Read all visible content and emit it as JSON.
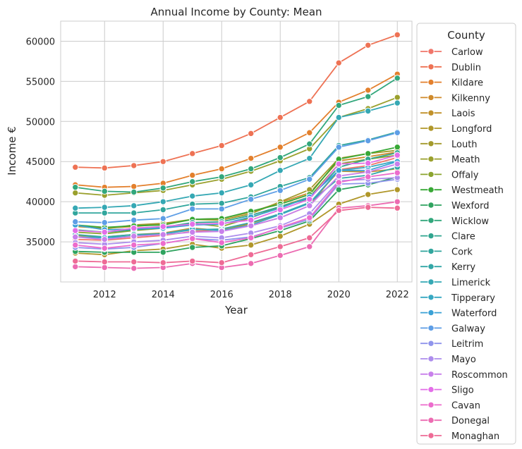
{
  "chart_data": {
    "type": "line",
    "title": "Annual Income by County: Mean",
    "xlabel": "Year",
    "ylabel": "Income €",
    "legend_title": "County",
    "legend_position": "outside-right",
    "grid": true,
    "xlim": [
      2010.5,
      2022.5
    ],
    "ylim": [
      30000,
      62500
    ],
    "x_ticks": [
      2012,
      2014,
      2016,
      2018,
      2020,
      2022
    ],
    "y_ticks": [
      35000,
      40000,
      45000,
      50000,
      55000,
      60000
    ],
    "x": [
      2011,
      2012,
      2013,
      2014,
      2015,
      2016,
      2017,
      2018,
      2019,
      2020,
      2021,
      2022
    ],
    "series": [
      {
        "name": "Carlow",
        "color": "#f0766a",
        "values": [
          35300,
          35200,
          35500,
          35800,
          36300,
          36500,
          37000,
          38000,
          39500,
          44000,
          44500,
          45500
        ]
      },
      {
        "name": "Dublin",
        "color": "#ee7254",
        "values": [
          44300,
          44200,
          44500,
          45000,
          46000,
          47000,
          48500,
          50500,
          52500,
          57300,
          59500,
          60800
        ]
      },
      {
        "name": "Kildare",
        "color": "#e3802d",
        "values": [
          42100,
          41800,
          41900,
          42300,
          43300,
          44100,
          45400,
          46800,
          48600,
          52400,
          53900,
          55900
        ]
      },
      {
        "name": "Kilkenny",
        "color": "#cf8a2b",
        "values": [
          36900,
          36700,
          36900,
          37200,
          37800,
          37900,
          38700,
          39900,
          41100,
          45100,
          45600,
          46200
        ]
      },
      {
        "name": "Laois",
        "color": "#c1912a",
        "values": [
          35800,
          35600,
          35900,
          36100,
          36700,
          36400,
          37300,
          38500,
          39800,
          43800,
          43700,
          44100
        ]
      },
      {
        "name": "Longford",
        "color": "#b0972a",
        "values": [
          33600,
          33400,
          33900,
          34100,
          34700,
          34200,
          34600,
          35700,
          37200,
          39700,
          40900,
          41500
        ]
      },
      {
        "name": "Louth",
        "color": "#a39a2b",
        "values": [
          37000,
          36600,
          37100,
          37300,
          37800,
          37700,
          38500,
          40000,
          41500,
          45400,
          46000,
          46400
        ]
      },
      {
        "name": "Meath",
        "color": "#9aa02d",
        "values": [
          41100,
          40800,
          41100,
          41400,
          42100,
          42800,
          43800,
          45100,
          46600,
          50500,
          51600,
          53000
        ]
      },
      {
        "name": "Offaly",
        "color": "#8ba42f",
        "values": [
          36200,
          36000,
          36400,
          36700,
          37300,
          36900,
          38000,
          39400,
          40600,
          44700,
          45300,
          45800
        ]
      },
      {
        "name": "Westmeath",
        "color": "#38a836",
        "values": [
          37100,
          36800,
          37000,
          37100,
          37800,
          37900,
          38800,
          39700,
          40900,
          45300,
          46000,
          46800
        ]
      },
      {
        "name": "Wexford",
        "color": "#2fa35f",
        "values": [
          33800,
          33700,
          33700,
          33700,
          34300,
          34500,
          35400,
          36400,
          37600,
          41500,
          42100,
          43100
        ]
      },
      {
        "name": "Wicklow",
        "color": "#32a77c",
        "values": [
          41800,
          41300,
          41200,
          41700,
          42500,
          43100,
          44100,
          45500,
          47200,
          52000,
          53100,
          55400
        ]
      },
      {
        "name": "Clare",
        "color": "#30a58f",
        "values": [
          36500,
          36200,
          36500,
          36800,
          37400,
          37500,
          38300,
          39400,
          40400,
          44300,
          45300,
          46100
        ]
      },
      {
        "name": "Cork",
        "color": "#31a69d",
        "values": [
          38600,
          38600,
          38600,
          39000,
          39700,
          39800,
          40600,
          41900,
          43000,
          47000,
          47700,
          48700
        ]
      },
      {
        "name": "Kerry",
        "color": "#33a7a7",
        "values": [
          35900,
          35600,
          35900,
          36000,
          36500,
          36600,
          37400,
          38500,
          39900,
          42900,
          43300,
          44300
        ]
      },
      {
        "name": "Limerick",
        "color": "#35a8b4",
        "values": [
          39200,
          39300,
          39500,
          40000,
          40700,
          41100,
          42100,
          43900,
          45400,
          50500,
          51300,
          52300
        ]
      },
      {
        "name": "Tipperary",
        "color": "#37a8c2",
        "values": [
          35600,
          35500,
          35700,
          36000,
          36600,
          36400,
          37100,
          38400,
          39800,
          43900,
          44300,
          45100
        ]
      },
      {
        "name": "Waterford",
        "color": "#3aa1d6",
        "values": [
          37100,
          36500,
          36600,
          36700,
          37100,
          37200,
          38100,
          39200,
          40600,
          43900,
          43900,
          45000
        ]
      },
      {
        "name": "Galway",
        "color": "#5e9ee6",
        "values": [
          37500,
          37400,
          37700,
          37900,
          39100,
          39100,
          40300,
          41400,
          42800,
          46800,
          47600,
          48600
        ]
      },
      {
        "name": "Leitrim",
        "color": "#8f94ec",
        "values": [
          34300,
          34100,
          34300,
          34800,
          35400,
          35200,
          35600,
          36700,
          37800,
          42200,
          42300,
          42800
        ]
      },
      {
        "name": "Mayo",
        "color": "#ad8ded",
        "values": [
          34900,
          34700,
          35000,
          35200,
          35700,
          35500,
          36100,
          37000,
          38500,
          42600,
          42800,
          43000
        ]
      },
      {
        "name": "Roscommon",
        "color": "#c880eb",
        "values": [
          35600,
          35300,
          35700,
          35900,
          36200,
          36300,
          37000,
          38000,
          39500,
          43200,
          43700,
          44700
        ]
      },
      {
        "name": "Sligo",
        "color": "#e36ee8",
        "values": [
          36400,
          36200,
          36700,
          36900,
          37200,
          37300,
          37700,
          39000,
          40300,
          44700,
          44800,
          45800
        ]
      },
      {
        "name": "Cavan",
        "color": "#ec6ccc",
        "values": [
          34600,
          34200,
          34600,
          34800,
          35400,
          34900,
          35500,
          36800,
          38000,
          42400,
          43100,
          43600
        ]
      },
      {
        "name": "Donegal",
        "color": "#ec6cb2",
        "values": [
          31900,
          31800,
          31700,
          31800,
          32300,
          31800,
          32300,
          33300,
          34400,
          39200,
          39500,
          40000
        ]
      },
      {
        "name": "Monaghan",
        "color": "#ee6b96",
        "values": [
          32600,
          32500,
          32500,
          32400,
          32600,
          32400,
          33400,
          34400,
          35500,
          38900,
          39300,
          39200
        ]
      }
    ]
  }
}
